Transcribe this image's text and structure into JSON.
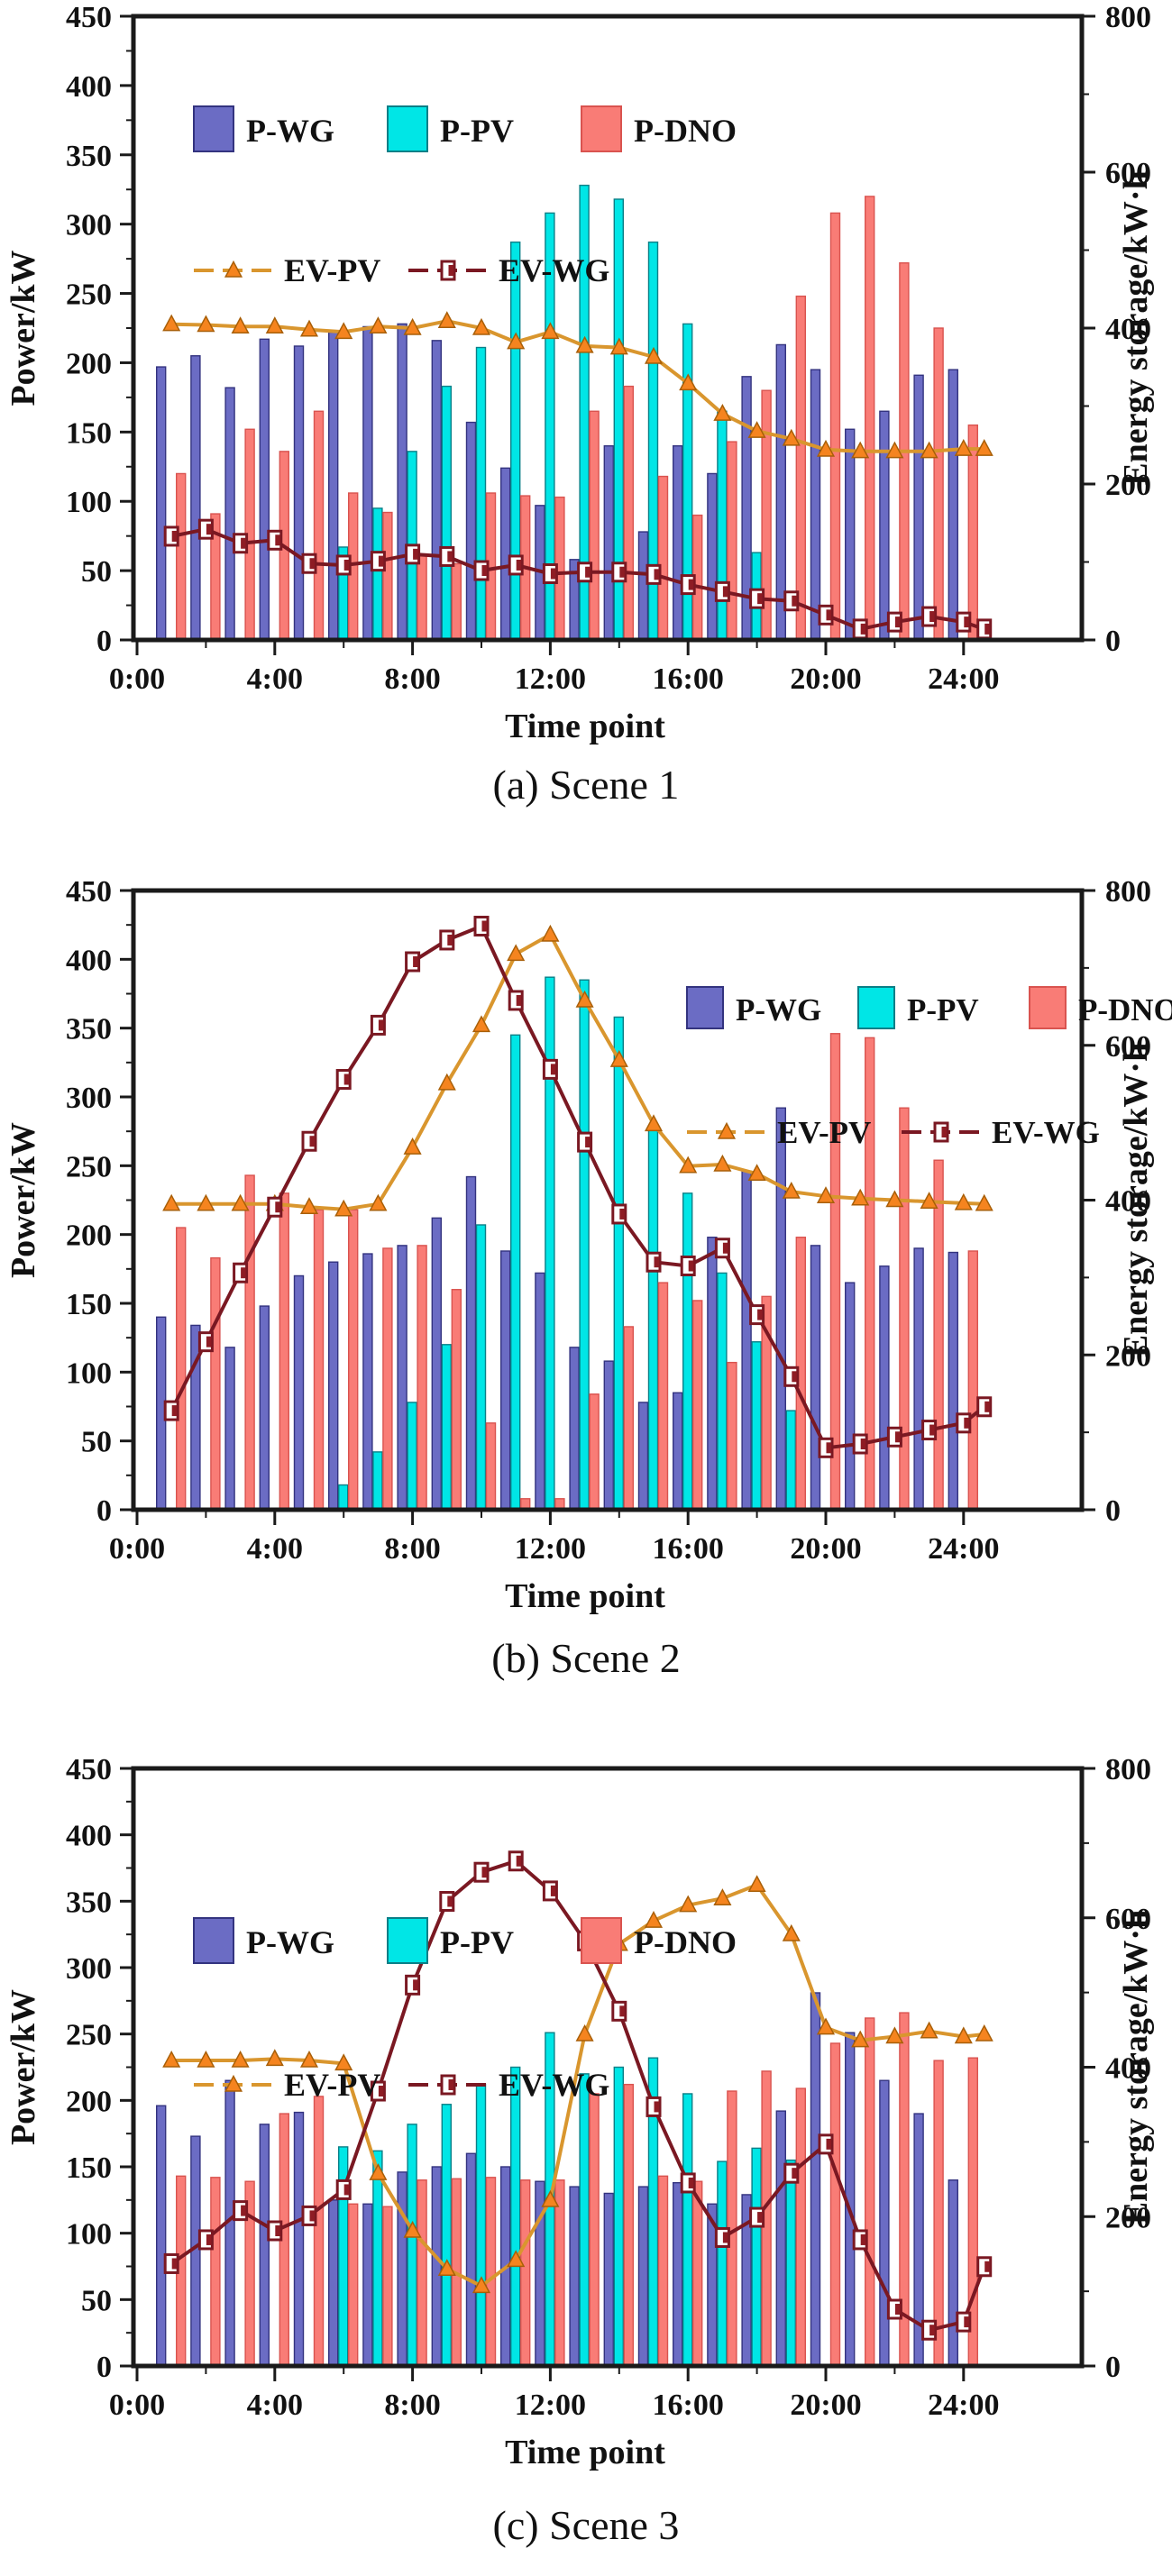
{
  "figure": {
    "background": "#ffffff",
    "xlabel": "Time point",
    "ylabel_left": "Power/kW",
    "ylabel_right": "Energy storage/kW·h",
    "x_tick_labels": [
      "0:00",
      "4:00",
      "8:00",
      "12:00",
      "16:00",
      "20:00",
      "24:00"
    ],
    "x_tick_hours": [
      0,
      4,
      8,
      12,
      16,
      20,
      24
    ],
    "y_left_ticks": [
      0,
      50,
      100,
      150,
      200,
      250,
      300,
      350,
      400,
      450
    ],
    "y_right_ticks": [
      0,
      200,
      400,
      600,
      800
    ]
  },
  "colors": {
    "p_wg_fill": "#6b6cc4",
    "p_wg_edge": "#33337f",
    "p_pv_fill": "#00e6e6",
    "p_pv_edge": "#0a7f87",
    "p_dno_fill": "#f97c76",
    "p_dno_edge": "#d9534f",
    "ev_pv_line": "#d9962e",
    "ev_pv_marker": "#f5841f",
    "ev_pv_marker_edge": "#a85f08",
    "ev_wg_line": "#7a1822",
    "ev_wg_marker_fill": "#ffffff",
    "ev_wg_marker_inner": "#8e1c24",
    "axis": "#1a1a1a"
  },
  "charts": [
    {
      "caption": "(a) Scene 1",
      "legend_position": "top-left",
      "chart_data": {
        "type": "bar+line",
        "title": "",
        "xlabel": "Time point",
        "ylabel_left": "Power/kW",
        "ylabel_right": "Energy storage/kW·h",
        "ylim_left": [
          0,
          450
        ],
        "ylim_right": [
          0,
          800
        ],
        "x_hours": [
          1,
          2,
          3,
          4,
          5,
          6,
          7,
          8,
          9,
          10,
          11,
          12,
          13,
          14,
          15,
          16,
          17,
          18,
          19,
          20,
          21,
          22,
          23,
          24
        ],
        "bar_series": [
          {
            "name": "P-WG",
            "axis": "left",
            "values": [
              197,
              205,
              182,
              217,
              212,
              222,
              226,
              228,
              216,
              157,
              124,
              97,
              58,
              140,
              78,
              140,
              120,
              190,
              213,
              195,
              152,
              165,
              191,
              195
            ]
          },
          {
            "name": "P-PV",
            "axis": "left",
            "values": [
              0,
              0,
              0,
              0,
              0,
              67,
              95,
              136,
              183,
              211,
              287,
              308,
              328,
              318,
              287,
              228,
              165,
              63,
              0,
              0,
              0,
              0,
              0,
              0
            ]
          },
          {
            "name": "P-DNO",
            "axis": "left",
            "values": [
              120,
              91,
              152,
              136,
              165,
              106,
              92,
              62,
              55,
              106,
              104,
              103,
              165,
              183,
              118,
              90,
              143,
              180,
              248,
              308,
              320,
              272,
              225,
              155
            ]
          }
        ],
        "line_series": [
          {
            "name": "EV-PV",
            "axis": "right",
            "marker": "triangle",
            "x": [
              1,
              2,
              3,
              4,
              5,
              6,
              7,
              8,
              9,
              10,
              11,
              12,
              13,
              14,
              15,
              16,
              17,
              18,
              19,
              20,
              21,
              22,
              23,
              24,
              24.6
            ],
            "values": [
              405,
              404,
              402,
              402,
              398,
              395,
              402,
              400,
              409,
              400,
              382,
              395,
              377,
              375,
              363,
              329,
              290,
              268,
              258,
              244,
              242,
              242,
              242,
              245,
              245
            ]
          },
          {
            "name": "EV-WG",
            "axis": "right",
            "marker": "square",
            "x": [
              1,
              2,
              3,
              4,
              5,
              6,
              7,
              8,
              9,
              10,
              11,
              12,
              13,
              14,
              15,
              16,
              17,
              18,
              19,
              20,
              21,
              22,
              23,
              24,
              24.6
            ],
            "values": [
              133,
              142,
              124,
              128,
              98,
              96,
              101,
              110,
              107,
              89,
              96,
              85,
              87,
              87,
              84,
              71,
              62,
              53,
              50,
              32,
              14,
              23,
              30,
              23,
              14
            ]
          }
        ]
      }
    },
    {
      "caption": "(b) Scene 2",
      "legend_position": "top-right",
      "chart_data": {
        "type": "bar+line",
        "title": "",
        "xlabel": "Time point",
        "ylabel_left": "Power/kW",
        "ylabel_right": "Energy storage/kW·h",
        "ylim_left": [
          0,
          450
        ],
        "ylim_right": [
          0,
          800
        ],
        "x_hours": [
          1,
          2,
          3,
          4,
          5,
          6,
          7,
          8,
          9,
          10,
          11,
          12,
          13,
          14,
          15,
          16,
          17,
          18,
          19,
          20,
          21,
          22,
          23,
          24
        ],
        "bar_series": [
          {
            "name": "P-WG",
            "axis": "left",
            "values": [
              140,
              134,
              118,
              148,
              170,
              180,
              186,
              192,
              212,
              242,
              188,
              172,
              118,
              108,
              78,
              85,
              198,
              246,
              292,
              192,
              165,
              177,
              190,
              187
            ]
          },
          {
            "name": "P-PV",
            "axis": "left",
            "values": [
              0,
              0,
              0,
              0,
              0,
              18,
              42,
              78,
              120,
              207,
              345,
              387,
              385,
              358,
              276,
              230,
              172,
              122,
              72,
              0,
              0,
              0,
              0,
              0
            ]
          },
          {
            "name": "P-DNO",
            "axis": "left",
            "values": [
              205,
              183,
              243,
              230,
              218,
              218,
              190,
              192,
              160,
              63,
              8,
              8,
              84,
              133,
              165,
              152,
              107,
              155,
              198,
              346,
              343,
              292,
              254,
              188
            ]
          }
        ],
        "line_series": [
          {
            "name": "EV-PV",
            "axis": "right",
            "marker": "triangle",
            "x": [
              1,
              2,
              3,
              4,
              5,
              6,
              7,
              8,
              9,
              10,
              11,
              12,
              13,
              14,
              15,
              16,
              17,
              18,
              19,
              20,
              21,
              22,
              23,
              24,
              24.6
            ],
            "values": [
              395,
              395,
              395,
              395,
              391,
              388,
              395,
              468,
              551,
              626,
              718,
              743,
              658,
              581,
              498,
              444,
              446,
              434,
              411,
              405,
              402,
              400,
              398,
              396,
              395
            ]
          },
          {
            "name": "EV-WG",
            "axis": "right",
            "marker": "square",
            "x": [
              1,
              2,
              3,
              4,
              5,
              6,
              7,
              8,
              9,
              10,
              11,
              12,
              13,
              14,
              15,
              16,
              17,
              18,
              19,
              20,
              21,
              22,
              23,
              24,
              24.6
            ],
            "values": [
              128,
              217,
              306,
              391,
              476,
              556,
              626,
              708,
              736,
              754,
              658,
              569,
              475,
              382,
              320,
              315,
              338,
              252,
              172,
              80,
              85,
              94,
              103,
              112,
              133
            ]
          }
        ]
      }
    },
    {
      "caption": "(c) Scene 3",
      "legend_position": "top-left",
      "chart_data": {
        "type": "bar+line",
        "title": "",
        "xlabel": "Time point",
        "ylabel_left": "Power/kW",
        "ylabel_right": "Energy storage/kW·h",
        "ylim_left": [
          0,
          450
        ],
        "ylim_right": [
          0,
          800
        ],
        "x_hours": [
          1,
          2,
          3,
          4,
          5,
          6,
          7,
          8,
          9,
          10,
          11,
          12,
          13,
          14,
          15,
          16,
          17,
          18,
          19,
          20,
          21,
          22,
          23,
          24
        ],
        "bar_series": [
          {
            "name": "P-WG",
            "axis": "left",
            "values": [
              196,
              173,
              215,
              182,
              191,
              125,
              122,
              146,
              150,
              160,
              150,
              139,
              135,
              130,
              135,
              138,
              122,
              129,
              192,
              281,
              251,
              215,
              190,
              140
            ]
          },
          {
            "name": "P-PV",
            "axis": "left",
            "values": [
              0,
              0,
              0,
              0,
              0,
              165,
              162,
              182,
              197,
              212,
              225,
              251,
              220,
              225,
              232,
              205,
              154,
              164,
              155,
              0,
              0,
              0,
              0,
              0
            ]
          },
          {
            "name": "P-DNO",
            "axis": "left",
            "values": [
              143,
              142,
              139,
              190,
              203,
              122,
              120,
              140,
              141,
              142,
              140,
              140,
              205,
              212,
              143,
              139,
              207,
              222,
              209,
              243,
              262,
              266,
              230,
              232
            ]
          }
        ],
        "line_series": [
          {
            "name": "EV-PV",
            "axis": "right",
            "marker": "triangle",
            "x": [
              1,
              2,
              3,
              4,
              5,
              6,
              7,
              8,
              9,
              10,
              11,
              12,
              13,
              14,
              15,
              16,
              17,
              18,
              19,
              20,
              21,
              22,
              23,
              24,
              24.6
            ],
            "values": [
              409,
              409,
              409,
              411,
              409,
              405,
              258,
              181,
              130,
              107,
              142,
              222,
              444,
              565,
              596,
              617,
              626,
              644,
              578,
              453,
              436,
              441,
              448,
              441,
              444
            ]
          },
          {
            "name": "EV-WG",
            "axis": "right",
            "marker": "square",
            "x": [
              1,
              2,
              3,
              4,
              5,
              6,
              7,
              8,
              9,
              10,
              11,
              12,
              13,
              14,
              15,
              16,
              17,
              18,
              19,
              20,
              21,
              22,
              23,
              24,
              24.6
            ],
            "values": [
              137,
              169,
              208,
              181,
              201,
              236,
              368,
              510,
              622,
              661,
              676,
              636,
              569,
              475,
              347,
              245,
              172,
              199,
              258,
              297,
              169,
              76,
              48,
              59,
              133
            ]
          }
        ]
      }
    }
  ]
}
